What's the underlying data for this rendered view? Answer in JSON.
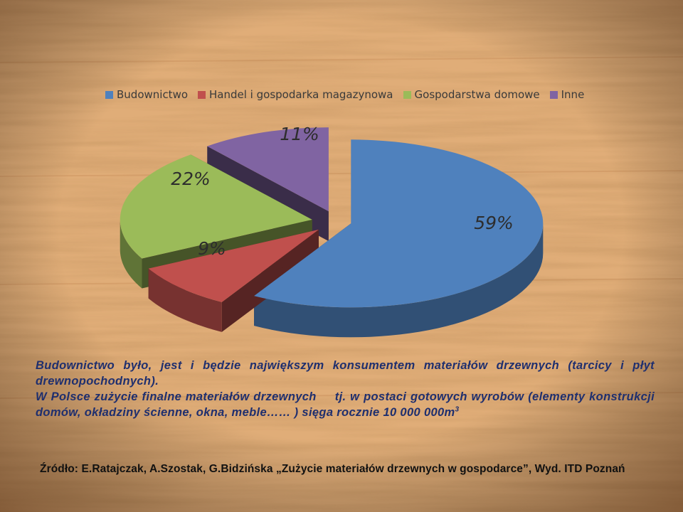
{
  "chart_data": {
    "type": "pie",
    "categories": [
      "Budownictwo",
      "Handel i gospodarka magazynowa",
      "Gospodarstwa domowe",
      "Inne"
    ],
    "values": [
      59,
      9,
      22,
      11
    ],
    "labels": [
      "59%",
      "9%",
      "22%",
      "11%"
    ],
    "colors": [
      "#4f81bd",
      "#c0504d",
      "#9bbb59",
      "#8064a2"
    ],
    "legend_position": "top",
    "style": "3d-exploded"
  },
  "text": {
    "line1": "Budownictwo było, jest i będzie największym konsumentem materiałów drzewnych (tarcicy i płyt drewnopochodnych).",
    "line2a": "W Polsce zużycie finalne materiałów drzewnych",
    "line2b": "tj. w postaci gotowych wyrobów (elementy konstrukcji domów,  okładziny ścienne, okna, meble…… ) sięga rocznie 10 000 000m",
    "line2_sup": "3",
    "source": "Źródło: E.Ratajczak, A.Szostak, G.Bidzińska „Zużycie materiałów drzewnych w gospodarce”, Wyd. ITD Poznań"
  },
  "theme": {
    "wood_light": "#e3b27e",
    "wood_dark": "#b77a45",
    "text_blue": "#1f2f6e"
  }
}
